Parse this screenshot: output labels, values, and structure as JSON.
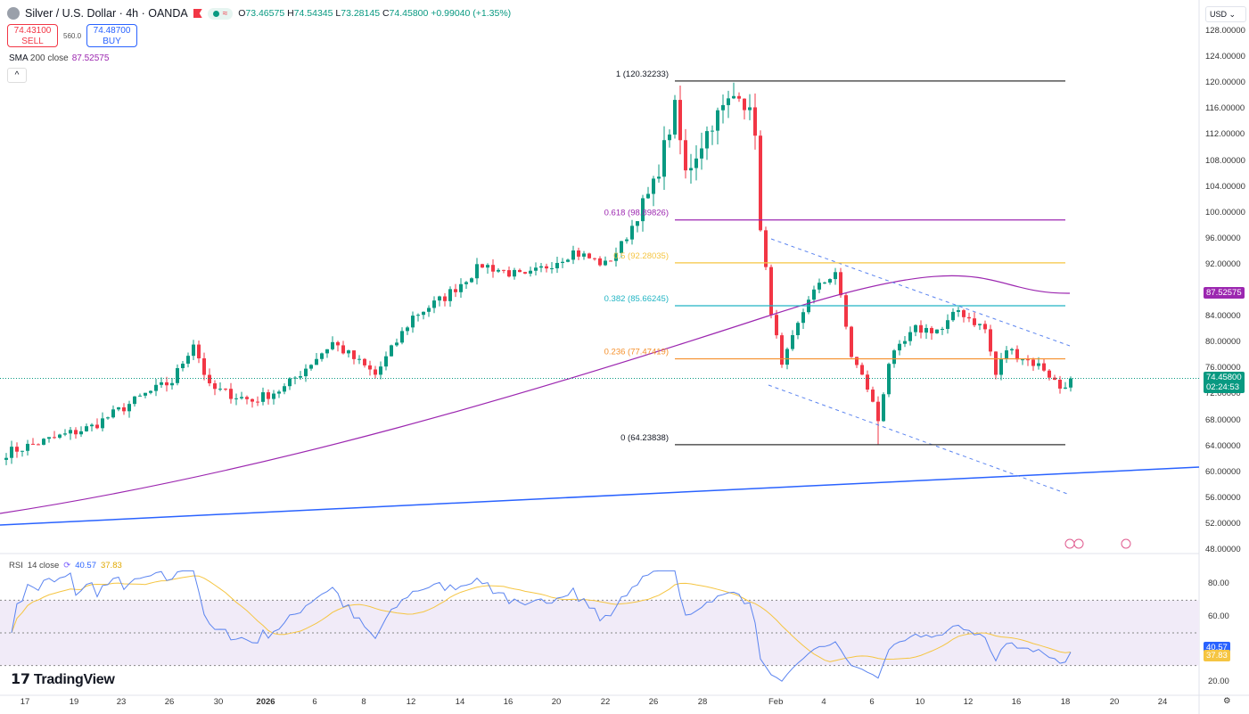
{
  "header": {
    "symbol": "Silver / U.S. Dollar · 4h · OANDA",
    "open_label": "O",
    "open": "73.46575",
    "high_label": "H",
    "high": "74.54345",
    "low_label": "L",
    "low": "73.28145",
    "close_label": "C",
    "close": "74.45800",
    "change": "+0.99040 (+1.35%)"
  },
  "trade": {
    "sell_price": "74.43100",
    "sell_label": "SELL",
    "spread": "560.0",
    "buy_price": "74.48700",
    "buy_label": "BUY"
  },
  "sma_legend": {
    "name": "SMA",
    "params": "200 close",
    "value": "87.52575"
  },
  "collapse_icon": "^",
  "currency": "USD ⌄",
  "rsi_legend": {
    "name": "RSI",
    "params": "14 close",
    "rsi": "40.57",
    "signal": "37.83"
  },
  "brand": "TradingView",
  "colors": {
    "up": "#089981",
    "down": "#f23645",
    "sma": "#9c27b0",
    "rsi": "#5b84f0",
    "signal": "#f5c542",
    "blue_line": "#2962ff"
  },
  "chart_data": {
    "type": "candlestick",
    "price_axis": {
      "min": 48,
      "max": 128,
      "ticks": [
        "128.00000",
        "124.00000",
        "120.00000",
        "116.00000",
        "112.00000",
        "108.00000",
        "104.00000",
        "100.00000",
        "96.00000",
        "92.00000",
        "84.00000",
        "80.00000",
        "76.00000",
        "72.00000",
        "68.00000",
        "64.00000",
        "60.00000",
        "56.00000",
        "52.00000",
        "48.00000"
      ]
    },
    "price_tags": {
      "sma": "87.52575",
      "last": "74.45800",
      "countdown": "02:24:53"
    },
    "approx_close_keypoints": [
      [
        0,
        63
      ],
      [
        16,
        67
      ],
      [
        26,
        72
      ],
      [
        31,
        74
      ],
      [
        35,
        80
      ],
      [
        38,
        73
      ],
      [
        46,
        71
      ],
      [
        52,
        73
      ],
      [
        61,
        80
      ],
      [
        69,
        75
      ],
      [
        76,
        84
      ],
      [
        82,
        87
      ],
      [
        89,
        92
      ],
      [
        97,
        90
      ],
      [
        106,
        94
      ],
      [
        112,
        92
      ],
      [
        115,
        95
      ],
      [
        121,
        104
      ],
      [
        125,
        116
      ],
      [
        127,
        106
      ],
      [
        132,
        114
      ],
      [
        137,
        119
      ],
      [
        140,
        113
      ],
      [
        141,
        97
      ],
      [
        143,
        85
      ],
      [
        145,
        76
      ],
      [
        150,
        87
      ],
      [
        155,
        91
      ],
      [
        158,
        78
      ],
      [
        161,
        73
      ],
      [
        163,
        68
      ],
      [
        165,
        77
      ],
      [
        170,
        82
      ],
      [
        175,
        82
      ],
      [
        178,
        85
      ],
      [
        183,
        82
      ],
      [
        185,
        75
      ],
      [
        187,
        79
      ],
      [
        194,
        76
      ],
      [
        197,
        73
      ],
      [
        199,
        74.458
      ]
    ],
    "fibonacci": [
      {
        "level": "1",
        "price": "120.32233"
      },
      {
        "level": "0.618",
        "price": "98.89826"
      },
      {
        "level": "0.5",
        "price": "92.28035"
      },
      {
        "level": "0.382",
        "price": "85.66245"
      },
      {
        "level": "0.236",
        "price": "77.47419"
      },
      {
        "level": "0",
        "price": "64.23838"
      }
    ],
    "rsi_axis": {
      "ticks": [
        "80.00",
        "60.00",
        "20.00"
      ],
      "bands": [
        70,
        50,
        30
      ],
      "tags": {
        "rsi": "40.57",
        "signal": "37.83"
      }
    },
    "x_ticks": [
      "17",
      "19",
      "23",
      "26",
      "30",
      "2026",
      "6",
      "8",
      "12",
      "14",
      "16",
      "20",
      "22",
      "26",
      "28",
      "Feb",
      "4",
      "6",
      "10",
      "12",
      "16",
      "18",
      "20",
      "24"
    ]
  }
}
